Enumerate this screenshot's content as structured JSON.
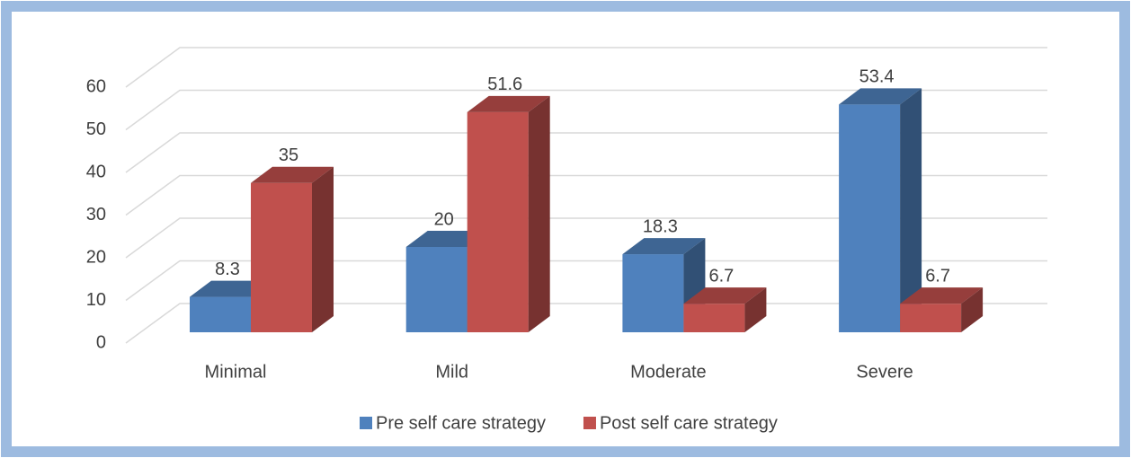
{
  "chart_data": {
    "type": "bar3d",
    "categories": [
      "Minimal",
      "Mild",
      "Moderate",
      "Severe"
    ],
    "series": [
      {
        "name": "Pre self care strategy",
        "color": "#4f81bd",
        "values": [
          8.3,
          20,
          18.3,
          53.4
        ]
      },
      {
        "name": "Post self care strategy",
        "color": "#c0504d",
        "values": [
          35,
          51.6,
          6.7,
          6.7
        ]
      }
    ],
    "ylim": [
      0,
      60
    ],
    "yticks": [
      0,
      10,
      20,
      30,
      40,
      50,
      60
    ],
    "grid": true,
    "legend": "bottom"
  }
}
